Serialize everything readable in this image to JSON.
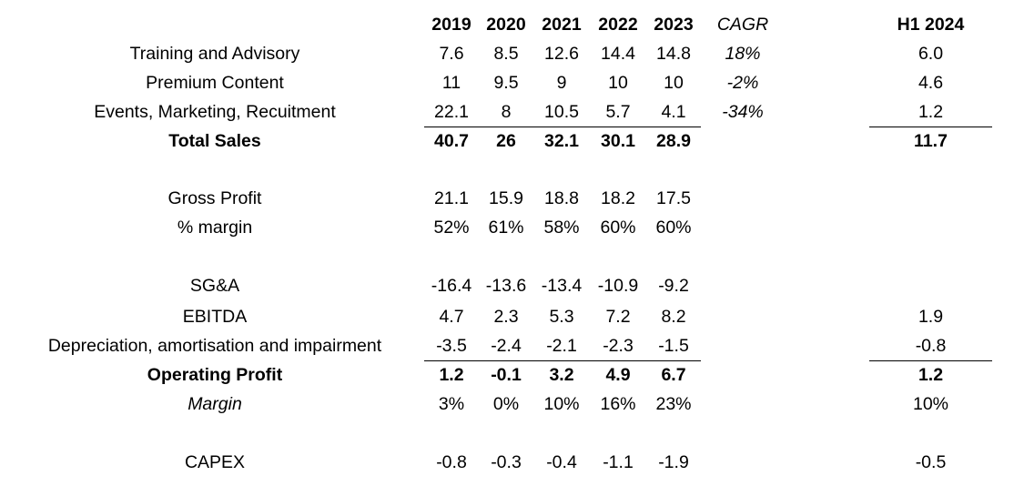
{
  "header": {
    "years": [
      "2019",
      "2020",
      "2021",
      "2022",
      "2023"
    ],
    "cagr": "CAGR",
    "h1": "H1 2024"
  },
  "rows": [
    {
      "label": "Training and Advisory",
      "values": [
        "7.6",
        "8.5",
        "12.6",
        "14.4",
        "14.8"
      ],
      "cagr": "18%",
      "h1": "6.0"
    },
    {
      "label": "Premium Content",
      "values": [
        "11",
        "9.5",
        "9",
        "10",
        "10"
      ],
      "cagr": "-2%",
      "h1": "4.6"
    },
    {
      "label": "Events, Marketing, Recuitment",
      "values": [
        "22.1",
        "8",
        "10.5",
        "5.7",
        "4.1"
      ],
      "cagr": "-34%",
      "h1": "1.2"
    },
    {
      "label": "Total Sales",
      "values": [
        "40.7",
        "26",
        "32.1",
        "30.1",
        "28.9"
      ],
      "cagr": "",
      "h1": "11.7"
    },
    {
      "label": "Gross Profit",
      "values": [
        "21.1",
        "15.9",
        "18.8",
        "18.2",
        "17.5"
      ],
      "cagr": "",
      "h1": ""
    },
    {
      "label": "% margin",
      "values": [
        "52%",
        "61%",
        "58%",
        "60%",
        "60%"
      ],
      "cagr": "",
      "h1": ""
    },
    {
      "label": "SG&A",
      "values": [
        "-16.4",
        "-13.6",
        "-13.4",
        "-10.9",
        "-9.2"
      ],
      "cagr": "",
      "h1": ""
    },
    {
      "label": "EBITDA",
      "values": [
        "4.7",
        "2.3",
        "5.3",
        "7.2",
        "8.2"
      ],
      "cagr": "",
      "h1": "1.9"
    },
    {
      "label": "Depreciation, amortisation and impairment",
      "values": [
        "-3.5",
        "-2.4",
        "-2.1",
        "-2.3",
        "-1.5"
      ],
      "cagr": "",
      "h1": "-0.8"
    },
    {
      "label": "Operating Profit",
      "values": [
        "1.2",
        "-0.1",
        "3.2",
        "4.9",
        "6.7"
      ],
      "cagr": "",
      "h1": "1.2"
    },
    {
      "label": "Margin",
      "values": [
        "3%",
        "0%",
        "10%",
        "16%",
        "23%"
      ],
      "cagr": "",
      "h1": "10%"
    },
    {
      "label": "CAPEX",
      "values": [
        "-0.8",
        "-0.3",
        "-0.4",
        "-1.1",
        "-1.9"
      ],
      "cagr": "",
      "h1": "-0.5"
    }
  ]
}
